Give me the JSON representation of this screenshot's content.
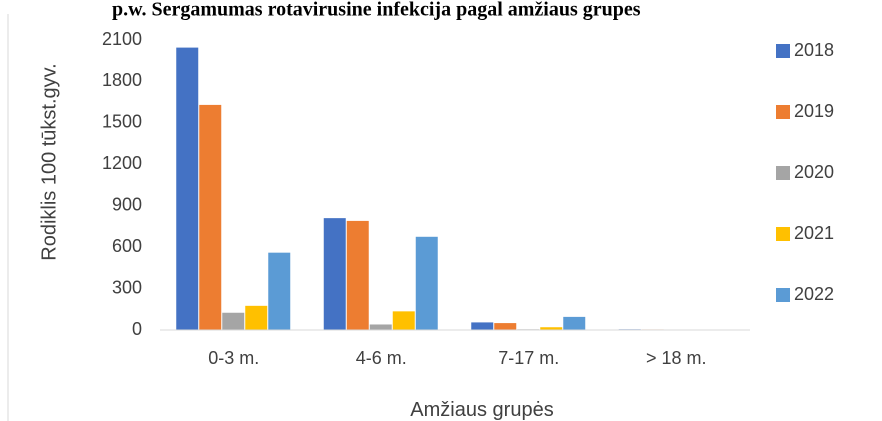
{
  "page_title": "p.w. Sergamumas rotavirusine infekcija pagal amžiaus grupes",
  "chart_data": {
    "type": "bar",
    "title": "",
    "xlabel": "Amžiaus grupės",
    "ylabel": "Rodiklis 100 tūkst.gyv.",
    "ylim": [
      0,
      2100
    ],
    "yticks": [
      0,
      300,
      600,
      900,
      1200,
      1500,
      1800,
      2100
    ],
    "grid": false,
    "legend_position": "right",
    "categories": [
      "0-3 m.",
      "4-6 m.",
      "7-17 m.",
      "> 18 m."
    ],
    "series": [
      {
        "name": "2018",
        "color": "#4472C4",
        "values": [
          2045,
          810,
          55,
          5
        ]
      },
      {
        "name": "2019",
        "color": "#ED7D31",
        "values": [
          1630,
          790,
          50,
          4
        ]
      },
      {
        "name": "2020",
        "color": "#A5A5A5",
        "values": [
          125,
          40,
          5,
          1
        ]
      },
      {
        "name": "2021",
        "color": "#FFC000",
        "values": [
          175,
          135,
          20,
          2
        ]
      },
      {
        "name": "2022",
        "color": "#5B9BD5",
        "values": [
          560,
          675,
          95,
          3
        ]
      }
    ]
  }
}
